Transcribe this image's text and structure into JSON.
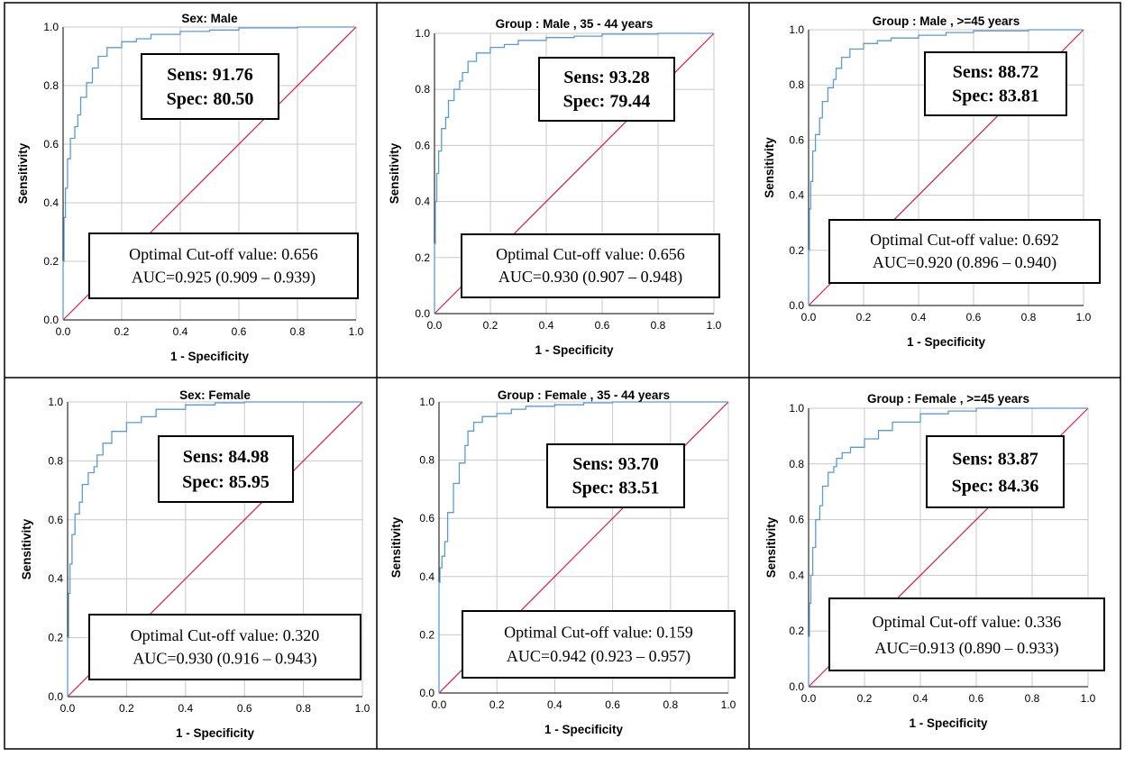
{
  "colors": {
    "roc_curve": "#5b9bd5",
    "reference_line": "#d81b4b",
    "grid": "#c8c8c8",
    "axis": "#000000",
    "border": "#000000"
  },
  "chart_data": [
    {
      "type": "line",
      "title": "Sex: Male",
      "xlabel": "1 - Specificity",
      "ylabel": "Sensitivity",
      "xlim": [
        0,
        1
      ],
      "ylim": [
        0,
        1
      ],
      "xticks": [
        "0.0",
        "0.2",
        "0.4",
        "0.6",
        "0.8",
        "1.0"
      ],
      "yticks": [
        "0.0",
        "0.2",
        "0.4",
        "0.6",
        "0.8",
        "1.0"
      ],
      "grid": true,
      "series": [
        {
          "name": "ROC",
          "x": [
            0,
            0.003,
            0.008,
            0.015,
            0.025,
            0.04,
            0.05,
            0.06,
            0.08,
            0.1,
            0.12,
            0.15,
            0.2,
            0.25,
            0.3,
            0.4,
            0.5,
            0.6,
            0.8,
            1.0
          ],
          "y": [
            0,
            0.2,
            0.35,
            0.45,
            0.55,
            0.62,
            0.66,
            0.7,
            0.76,
            0.81,
            0.86,
            0.9,
            0.93,
            0.95,
            0.96,
            0.975,
            0.985,
            0.99,
            0.997,
            1.0
          ]
        },
        {
          "name": "Reference",
          "x": [
            0,
            1
          ],
          "y": [
            0,
            1
          ]
        }
      ],
      "annotations": {
        "sens": "Sens: 91.76",
        "spec": "Spec: 80.50",
        "cutoff": "Optimal Cut-off value: 0.656",
        "auc": "AUC=0.925 (0.909 – 0.939)"
      }
    },
    {
      "type": "line",
      "title": "Group : Male , 35 - 44 years",
      "xlabel": "1 - Specificity",
      "ylabel": "Sensitivity",
      "xlim": [
        0,
        1
      ],
      "ylim": [
        0,
        1
      ],
      "xticks": [
        "0.0",
        "0.2",
        "0.4",
        "0.6",
        "0.8",
        "1.0"
      ],
      "yticks": [
        "0.0",
        "0.2",
        "0.4",
        "0.6",
        "0.8",
        "1.0"
      ],
      "grid": true,
      "series": [
        {
          "name": "ROC",
          "x": [
            0,
            0.003,
            0.008,
            0.015,
            0.025,
            0.04,
            0.05,
            0.07,
            0.09,
            0.1,
            0.12,
            0.15,
            0.2,
            0.25,
            0.3,
            0.4,
            0.5,
            0.6,
            0.8,
            1.0
          ],
          "y": [
            0,
            0.25,
            0.4,
            0.5,
            0.58,
            0.66,
            0.7,
            0.76,
            0.8,
            0.83,
            0.86,
            0.9,
            0.93,
            0.95,
            0.96,
            0.975,
            0.985,
            0.99,
            0.997,
            1.0
          ]
        },
        {
          "name": "Reference",
          "x": [
            0,
            1
          ],
          "y": [
            0,
            1
          ]
        }
      ],
      "annotations": {
        "sens": "Sens: 93.28",
        "spec": "Spec: 79.44",
        "cutoff": "Optimal Cut-off value: 0.656",
        "auc": "AUC=0.930 (0.907 – 0.948)"
      }
    },
    {
      "type": "line",
      "title": "Group : Male , >=45 years",
      "xlabel": "1 - Specificity",
      "ylabel": "Sensitivity",
      "xlim": [
        0,
        1
      ],
      "ylim": [
        0,
        1
      ],
      "xticks": [
        "0.0",
        "0.2",
        "0.4",
        "0.6",
        "0.8",
        "1.0"
      ],
      "yticks": [
        "0.0",
        "0.2",
        "0.4",
        "0.6",
        "0.8",
        "1.0"
      ],
      "grid": true,
      "series": [
        {
          "name": "ROC",
          "x": [
            0,
            0.003,
            0.008,
            0.015,
            0.025,
            0.04,
            0.05,
            0.07,
            0.09,
            0.1,
            0.12,
            0.15,
            0.2,
            0.25,
            0.3,
            0.4,
            0.5,
            0.6,
            0.8,
            1.0
          ],
          "y": [
            0,
            0.2,
            0.35,
            0.45,
            0.56,
            0.62,
            0.68,
            0.74,
            0.79,
            0.82,
            0.86,
            0.9,
            0.93,
            0.95,
            0.96,
            0.97,
            0.98,
            0.99,
            0.996,
            1.0
          ]
        },
        {
          "name": "Reference",
          "x": [
            0,
            1
          ],
          "y": [
            0,
            1
          ]
        }
      ],
      "annotations": {
        "sens": "Sens: 88.72",
        "spec": "Spec: 83.81",
        "cutoff": "Optimal Cut-off value: 0.692",
        "auc": "AUC=0.920 (0.896 – 0.940)"
      }
    },
    {
      "type": "line",
      "title": "Sex: Female",
      "xlabel": "1 - Specificity",
      "ylabel": "Sensitivity",
      "xlim": [
        0,
        1
      ],
      "ylim": [
        0,
        1
      ],
      "xticks": [
        "0.0",
        "0.2",
        "0.4",
        "0.6",
        "0.8",
        "1.0"
      ],
      "yticks": [
        "0.0",
        "0.2",
        "0.4",
        "0.6",
        "0.8",
        "1.0"
      ],
      "grid": true,
      "series": [
        {
          "name": "ROC",
          "x": [
            0,
            0.003,
            0.008,
            0.015,
            0.025,
            0.04,
            0.05,
            0.07,
            0.09,
            0.1,
            0.12,
            0.15,
            0.2,
            0.25,
            0.3,
            0.4,
            0.5,
            0.6,
            0.8,
            1.0
          ],
          "y": [
            0,
            0.2,
            0.35,
            0.45,
            0.55,
            0.62,
            0.66,
            0.72,
            0.76,
            0.78,
            0.82,
            0.86,
            0.9,
            0.93,
            0.95,
            0.975,
            0.99,
            0.997,
            1.0,
            1.0
          ]
        },
        {
          "name": "Reference",
          "x": [
            0,
            1
          ],
          "y": [
            0,
            1
          ]
        }
      ],
      "annotations": {
        "sens": "Sens: 84.98",
        "spec": "Spec: 85.95",
        "cutoff": "Optimal Cut-off value: 0.320",
        "auc": "AUC=0.930 (0.916 – 0.943)"
      }
    },
    {
      "type": "line",
      "title": "Group : Female , 35 - 44 years",
      "xlabel": "1 - Specificity",
      "ylabel": "Sensitivity",
      "xlim": [
        0,
        1
      ],
      "ylim": [
        0,
        1
      ],
      "xticks": [
        "0.0",
        "0.2",
        "0.4",
        "0.6",
        "0.8",
        "1.0"
      ],
      "yticks": [
        "0.0",
        "0.2",
        "0.4",
        "0.6",
        "0.8",
        "1.0"
      ],
      "grid": true,
      "series": [
        {
          "name": "ROC",
          "x": [
            0,
            0.003,
            0.01,
            0.02,
            0.03,
            0.05,
            0.07,
            0.09,
            0.1,
            0.12,
            0.15,
            0.2,
            0.25,
            0.3,
            0.4,
            0.5,
            0.6,
            0.8,
            1.0
          ],
          "y": [
            0,
            0.38,
            0.43,
            0.47,
            0.52,
            0.62,
            0.72,
            0.79,
            0.85,
            0.9,
            0.93,
            0.95,
            0.96,
            0.975,
            0.985,
            0.99,
            0.997,
            1.0,
            1.0
          ]
        },
        {
          "name": "Reference",
          "x": [
            0,
            1
          ],
          "y": [
            0,
            1
          ]
        }
      ],
      "annotations": {
        "sens": "Sens: 93.70",
        "spec": "Spec: 83.51",
        "cutoff": "Optimal Cut-off value: 0.159",
        "auc": "AUC=0.942 (0.923 – 0.957)"
      }
    },
    {
      "type": "line",
      "title": "Group : Female , >=45 years",
      "xlabel": "1 - Specificity",
      "ylabel": "Sensitivity",
      "xlim": [
        0,
        1
      ],
      "ylim": [
        0,
        1
      ],
      "xticks": [
        "0.0",
        "0.2",
        "0.4",
        "0.6",
        "0.8",
        "1.0"
      ],
      "yticks": [
        "0.0",
        "0.2",
        "0.4",
        "0.6",
        "0.8",
        "1.0"
      ],
      "grid": true,
      "series": [
        {
          "name": "ROC",
          "x": [
            0,
            0.003,
            0.008,
            0.015,
            0.025,
            0.04,
            0.05,
            0.07,
            0.09,
            0.1,
            0.12,
            0.15,
            0.2,
            0.25,
            0.3,
            0.4,
            0.5,
            0.6,
            0.8,
            1.0
          ],
          "y": [
            0,
            0.18,
            0.3,
            0.4,
            0.5,
            0.6,
            0.65,
            0.72,
            0.77,
            0.79,
            0.82,
            0.84,
            0.86,
            0.89,
            0.92,
            0.95,
            0.98,
            0.99,
            1.0,
            1.0
          ]
        },
        {
          "name": "Reference",
          "x": [
            0,
            1
          ],
          "y": [
            0,
            1
          ]
        }
      ],
      "annotations": {
        "sens": "Sens: 83.87",
        "spec": "Spec: 84.36",
        "cutoff": "Optimal Cut-off value: 0.336",
        "auc": "AUC=0.913 (0.890 – 0.933)"
      }
    }
  ]
}
